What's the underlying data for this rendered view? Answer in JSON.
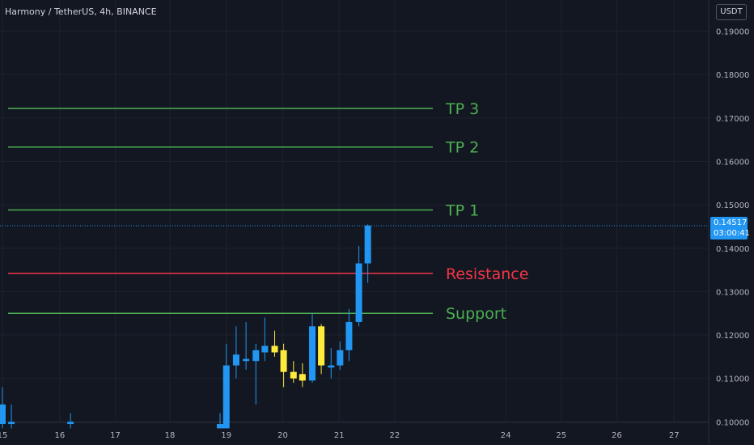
{
  "header": {
    "symbol": "Harmony / TetherUS, 4h, BINANCE",
    "currency": "USDT"
  },
  "last_price": {
    "value": "0.14517",
    "countdown": "03:00:41",
    "price": 0.14517,
    "color": "#2196f3"
  },
  "colors": {
    "background": "#131722",
    "up": "#2196f3",
    "down": "#ffeb3b",
    "target": "#4caf50",
    "resistance": "#f23645"
  },
  "chart_data": {
    "type": "candlestick",
    "y_ticks": [
      "0.19000",
      "0.18000",
      "0.17000",
      "0.16000",
      "0.15000",
      "0.14000",
      "0.13000",
      "0.12000",
      "0.11000",
      "0.10000"
    ],
    "ylim": [
      0.0985,
      0.1965
    ],
    "x_ticks": [
      {
        "label": "15",
        "t": 0
      },
      {
        "label": "16",
        "t": 6.4
      },
      {
        "label": "17",
        "t": 12.6
      },
      {
        "label": "18",
        "t": 18.7
      },
      {
        "label": "19",
        "t": 25.0
      },
      {
        "label": "20",
        "t": 31.3
      },
      {
        "label": "21",
        "t": 37.6
      },
      {
        "label": "22",
        "t": 43.8
      },
      {
        "label": "24",
        "t": 56.2
      },
      {
        "label": "25",
        "t": 62.4
      },
      {
        "label": "26",
        "t": 68.6
      },
      {
        "label": "27",
        "t": 75.0
      }
    ],
    "candles": [
      {
        "t": 0.0,
        "o": 0.0995,
        "h": 0.108,
        "l": 0.0985,
        "c": 0.104
      },
      {
        "t": 1.0,
        "o": 0.0995,
        "h": 0.104,
        "l": 0.0985,
        "c": 0.1
      },
      {
        "t": 7.6,
        "o": 0.0995,
        "h": 0.102,
        "l": 0.0985,
        "c": 0.1
      },
      {
        "t": 24.3,
        "o": 0.0985,
        "h": 0.102,
        "l": 0.0985,
        "c": 0.0995
      },
      {
        "t": 25.0,
        "o": 0.0985,
        "h": 0.118,
        "l": 0.0985,
        "c": 0.113
      },
      {
        "t": 26.1,
        "o": 0.113,
        "h": 0.122,
        "l": 0.11,
        "c": 0.1155
      },
      {
        "t": 27.2,
        "o": 0.114,
        "h": 0.123,
        "l": 0.112,
        "c": 0.1145
      },
      {
        "t": 28.3,
        "o": 0.114,
        "h": 0.118,
        "l": 0.104,
        "c": 0.1165
      },
      {
        "t": 29.3,
        "o": 0.116,
        "h": 0.124,
        "l": 0.114,
        "c": 0.1175
      },
      {
        "t": 30.4,
        "o": 0.1175,
        "h": 0.121,
        "l": 0.115,
        "c": 0.116
      },
      {
        "t": 31.4,
        "o": 0.1165,
        "h": 0.118,
        "l": 0.108,
        "c": 0.1115
      },
      {
        "t": 32.5,
        "o": 0.1115,
        "h": 0.114,
        "l": 0.109,
        "c": 0.11
      },
      {
        "t": 33.5,
        "o": 0.111,
        "h": 0.1135,
        "l": 0.108,
        "c": 0.1095
      },
      {
        "t": 34.6,
        "o": 0.1095,
        "h": 0.125,
        "l": 0.109,
        "c": 0.122
      },
      {
        "t": 35.6,
        "o": 0.122,
        "h": 0.1225,
        "l": 0.111,
        "c": 0.113
      },
      {
        "t": 36.7,
        "o": 0.1125,
        "h": 0.117,
        "l": 0.11,
        "c": 0.113
      },
      {
        "t": 37.7,
        "o": 0.113,
        "h": 0.1185,
        "l": 0.112,
        "c": 0.1165
      },
      {
        "t": 38.7,
        "o": 0.1165,
        "h": 0.126,
        "l": 0.114,
        "c": 0.123
      },
      {
        "t": 39.8,
        "o": 0.123,
        "h": 0.1405,
        "l": 0.122,
        "c": 0.1365
      },
      {
        "t": 40.8,
        "o": 0.1365,
        "h": 0.1455,
        "l": 0.132,
        "c": 0.1452
      }
    ],
    "levels": [
      {
        "label": "TP 3",
        "price": 0.1722,
        "role": "target"
      },
      {
        "label": "TP 2",
        "price": 0.1633,
        "role": "target"
      },
      {
        "label": "TP 1",
        "price": 0.1488,
        "role": "target"
      },
      {
        "label": "Resistance",
        "price": 0.1342,
        "role": "resistance"
      },
      {
        "label": "Support",
        "price": 0.125,
        "role": "target"
      }
    ],
    "grid": true
  }
}
